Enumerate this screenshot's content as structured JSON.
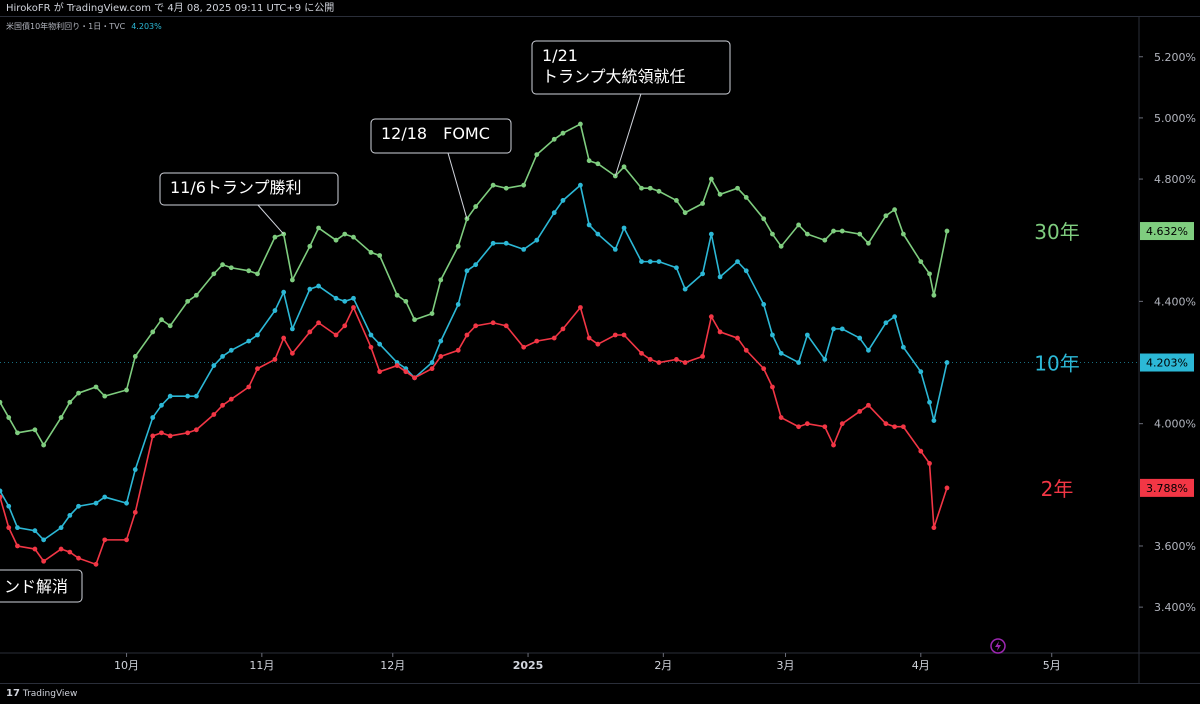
{
  "header": {
    "published_line": "HirokoFR が TradingView.com で 4月 08, 2025 09:11 UTC+9 に公開",
    "symbol_line": "米国債10年物利回り・1日・TVC",
    "symbol_value": "4.203%"
  },
  "footer": {
    "brand": "TradingView",
    "logo_mark": "17"
  },
  "colors": {
    "y30": "#7fcd7f",
    "y10": "#2cb8d6",
    "y2": "#f23645",
    "background": "#000000",
    "annotation_border": "#d1d4dc"
  },
  "chart_data": {
    "type": "line",
    "x_tick_labels": [
      "10月",
      "11月",
      "12月",
      "2025",
      "2月",
      "3月",
      "4月",
      "5月"
    ],
    "x_tick_dates": [
      "2024-10-01",
      "2024-11-01",
      "2024-12-01",
      "2025-01-01",
      "2025-02-01",
      "2025-03-01",
      "2025-04-01",
      "2025-05-01"
    ],
    "xlim": [
      "2024-09-02",
      "2025-05-21"
    ],
    "ylim": [
      3.25,
      5.33
    ],
    "y_tick_labels": [
      "3.400%",
      "3.600%",
      "4.000%",
      "4.400%",
      "4.800%",
      "5.000%",
      "5.200%"
    ],
    "y_tick_values": [
      3.4,
      3.6,
      4.0,
      4.4,
      4.8,
      5.0,
      5.2
    ],
    "grid": false,
    "last_values": {
      "y30": "4.632%",
      "y10": "4.203%",
      "y2": "3.788%"
    },
    "series": [
      {
        "key": "y30",
        "name": "30年",
        "x": [
          "2024-09-02",
          "2024-09-04",
          "2024-09-06",
          "2024-09-10",
          "2024-09-12",
          "2024-09-16",
          "2024-09-18",
          "2024-09-20",
          "2024-09-24",
          "2024-09-26",
          "2024-10-01",
          "2024-10-03",
          "2024-10-07",
          "2024-10-09",
          "2024-10-11",
          "2024-10-15",
          "2024-10-17",
          "2024-10-21",
          "2024-10-23",
          "2024-10-25",
          "2024-10-29",
          "2024-10-31",
          "2024-11-04",
          "2024-11-06",
          "2024-11-08",
          "2024-11-12",
          "2024-11-14",
          "2024-11-18",
          "2024-11-20",
          "2024-11-22",
          "2024-11-26",
          "2024-11-28",
          "2024-12-02",
          "2024-12-04",
          "2024-12-06",
          "2024-12-10",
          "2024-12-12",
          "2024-12-16",
          "2024-12-18",
          "2024-12-20",
          "2024-12-24",
          "2024-12-27",
          "2024-12-31",
          "2025-01-03",
          "2025-01-07",
          "2025-01-09",
          "2025-01-13",
          "2025-01-15",
          "2025-01-17",
          "2025-01-21",
          "2025-01-23",
          "2025-01-27",
          "2025-01-29",
          "2025-01-31",
          "2025-02-04",
          "2025-02-06",
          "2025-02-10",
          "2025-02-12",
          "2025-02-14",
          "2025-02-18",
          "2025-02-20",
          "2025-02-24",
          "2025-02-26",
          "2025-02-28",
          "2025-03-04",
          "2025-03-06",
          "2025-03-10",
          "2025-03-12",
          "2025-03-14",
          "2025-03-18",
          "2025-03-20",
          "2025-03-24",
          "2025-03-26",
          "2025-03-28",
          "2025-04-01",
          "2025-04-03",
          "2025-04-04",
          "2025-04-07"
        ],
        "values": [
          4.07,
          4.02,
          3.97,
          3.98,
          3.93,
          4.02,
          4.07,
          4.1,
          4.12,
          4.09,
          4.11,
          4.22,
          4.3,
          4.34,
          4.32,
          4.4,
          4.42,
          4.49,
          4.52,
          4.51,
          4.5,
          4.49,
          4.61,
          4.62,
          4.47,
          4.58,
          4.64,
          4.6,
          4.62,
          4.61,
          4.56,
          4.55,
          4.42,
          4.4,
          4.34,
          4.36,
          4.47,
          4.58,
          4.67,
          4.71,
          4.78,
          4.77,
          4.78,
          4.88,
          4.93,
          4.95,
          4.98,
          4.86,
          4.85,
          4.81,
          4.84,
          4.77,
          4.77,
          4.76,
          4.73,
          4.69,
          4.72,
          4.8,
          4.75,
          4.77,
          4.74,
          4.67,
          4.62,
          4.58,
          4.65,
          4.62,
          4.6,
          4.63,
          4.63,
          4.62,
          4.59,
          4.68,
          4.7,
          4.62,
          4.53,
          4.49,
          4.42,
          4.63
        ]
      },
      {
        "key": "y10",
        "name": "10年",
        "x": [
          "2024-09-02",
          "2024-09-04",
          "2024-09-06",
          "2024-09-10",
          "2024-09-12",
          "2024-09-16",
          "2024-09-18",
          "2024-09-20",
          "2024-09-24",
          "2024-09-26",
          "2024-10-01",
          "2024-10-03",
          "2024-10-07",
          "2024-10-09",
          "2024-10-11",
          "2024-10-15",
          "2024-10-17",
          "2024-10-21",
          "2024-10-23",
          "2024-10-25",
          "2024-10-29",
          "2024-10-31",
          "2024-11-04",
          "2024-11-06",
          "2024-11-08",
          "2024-11-12",
          "2024-11-14",
          "2024-11-18",
          "2024-11-20",
          "2024-11-22",
          "2024-11-26",
          "2024-11-28",
          "2024-12-02",
          "2024-12-04",
          "2024-12-06",
          "2024-12-10",
          "2024-12-12",
          "2024-12-16",
          "2024-12-18",
          "2024-12-20",
          "2024-12-24",
          "2024-12-27",
          "2024-12-31",
          "2025-01-03",
          "2025-01-07",
          "2025-01-09",
          "2025-01-13",
          "2025-01-15",
          "2025-01-17",
          "2025-01-21",
          "2025-01-23",
          "2025-01-27",
          "2025-01-29",
          "2025-01-31",
          "2025-02-04",
          "2025-02-06",
          "2025-02-10",
          "2025-02-12",
          "2025-02-14",
          "2025-02-18",
          "2025-02-20",
          "2025-02-24",
          "2025-02-26",
          "2025-02-28",
          "2025-03-04",
          "2025-03-06",
          "2025-03-10",
          "2025-03-12",
          "2025-03-14",
          "2025-03-18",
          "2025-03-20",
          "2025-03-24",
          "2025-03-26",
          "2025-03-28",
          "2025-04-01",
          "2025-04-03",
          "2025-04-04",
          "2025-04-07"
        ],
        "values": [
          3.78,
          3.73,
          3.66,
          3.65,
          3.62,
          3.66,
          3.7,
          3.73,
          3.74,
          3.76,
          3.74,
          3.85,
          4.02,
          4.06,
          4.09,
          4.09,
          4.09,
          4.19,
          4.22,
          4.24,
          4.27,
          4.29,
          4.37,
          4.43,
          4.31,
          4.44,
          4.45,
          4.41,
          4.4,
          4.41,
          4.29,
          4.26,
          4.2,
          4.18,
          4.15,
          4.2,
          4.27,
          4.39,
          4.5,
          4.52,
          4.59,
          4.59,
          4.57,
          4.6,
          4.69,
          4.73,
          4.78,
          4.65,
          4.62,
          4.57,
          4.64,
          4.53,
          4.53,
          4.53,
          4.51,
          4.44,
          4.49,
          4.62,
          4.48,
          4.53,
          4.5,
          4.39,
          4.29,
          4.23,
          4.2,
          4.29,
          4.21,
          4.31,
          4.31,
          4.28,
          4.24,
          4.33,
          4.35,
          4.25,
          4.17,
          4.07,
          4.01,
          4.2
        ]
      },
      {
        "key": "y2",
        "name": "2年",
        "x": [
          "2024-09-02",
          "2024-09-04",
          "2024-09-06",
          "2024-09-10",
          "2024-09-12",
          "2024-09-16",
          "2024-09-18",
          "2024-09-20",
          "2024-09-24",
          "2024-09-26",
          "2024-10-01",
          "2024-10-03",
          "2024-10-07",
          "2024-10-09",
          "2024-10-11",
          "2024-10-15",
          "2024-10-17",
          "2024-10-21",
          "2024-10-23",
          "2024-10-25",
          "2024-10-29",
          "2024-10-31",
          "2024-11-04",
          "2024-11-06",
          "2024-11-08",
          "2024-11-12",
          "2024-11-14",
          "2024-11-18",
          "2024-11-20",
          "2024-11-22",
          "2024-11-26",
          "2024-11-28",
          "2024-12-02",
          "2024-12-04",
          "2024-12-06",
          "2024-12-10",
          "2024-12-12",
          "2024-12-16",
          "2024-12-18",
          "2024-12-20",
          "2024-12-24",
          "2024-12-27",
          "2024-12-31",
          "2025-01-03",
          "2025-01-07",
          "2025-01-09",
          "2025-01-13",
          "2025-01-15",
          "2025-01-17",
          "2025-01-21",
          "2025-01-23",
          "2025-01-27",
          "2025-01-29",
          "2025-01-31",
          "2025-02-04",
          "2025-02-06",
          "2025-02-10",
          "2025-02-12",
          "2025-02-14",
          "2025-02-18",
          "2025-02-20",
          "2025-02-24",
          "2025-02-26",
          "2025-02-28",
          "2025-03-04",
          "2025-03-06",
          "2025-03-10",
          "2025-03-12",
          "2025-03-14",
          "2025-03-18",
          "2025-03-20",
          "2025-03-24",
          "2025-03-26",
          "2025-03-28",
          "2025-04-01",
          "2025-04-03",
          "2025-04-04",
          "2025-04-07"
        ],
        "values": [
          3.76,
          3.66,
          3.6,
          3.59,
          3.55,
          3.59,
          3.58,
          3.56,
          3.54,
          3.62,
          3.62,
          3.71,
          3.96,
          3.97,
          3.96,
          3.97,
          3.98,
          4.03,
          4.06,
          4.08,
          4.12,
          4.18,
          4.21,
          4.28,
          4.23,
          4.3,
          4.33,
          4.29,
          4.32,
          4.38,
          4.25,
          4.17,
          4.19,
          4.17,
          4.15,
          4.18,
          4.22,
          4.24,
          4.29,
          4.32,
          4.33,
          4.32,
          4.25,
          4.27,
          4.28,
          4.31,
          4.38,
          4.28,
          4.26,
          4.29,
          4.29,
          4.23,
          4.21,
          4.2,
          4.21,
          4.2,
          4.22,
          4.35,
          4.3,
          4.28,
          4.24,
          4.18,
          4.12,
          4.02,
          3.99,
          4.0,
          3.99,
          3.93,
          4.0,
          4.04,
          4.06,
          4.0,
          3.99,
          3.99,
          3.91,
          3.87,
          3.66,
          3.79
        ]
      }
    ],
    "annotations": [
      {
        "text": "11/6トランプ勝利",
        "date": "2024-11-06"
      },
      {
        "text": "12/18　FOMC",
        "date": "2024-12-18"
      },
      {
        "text": "1/21",
        "text2": "トランプ大統領就任",
        "date": "2025-01-21"
      },
      {
        "text": "ンド解消",
        "date": ""
      }
    ]
  }
}
